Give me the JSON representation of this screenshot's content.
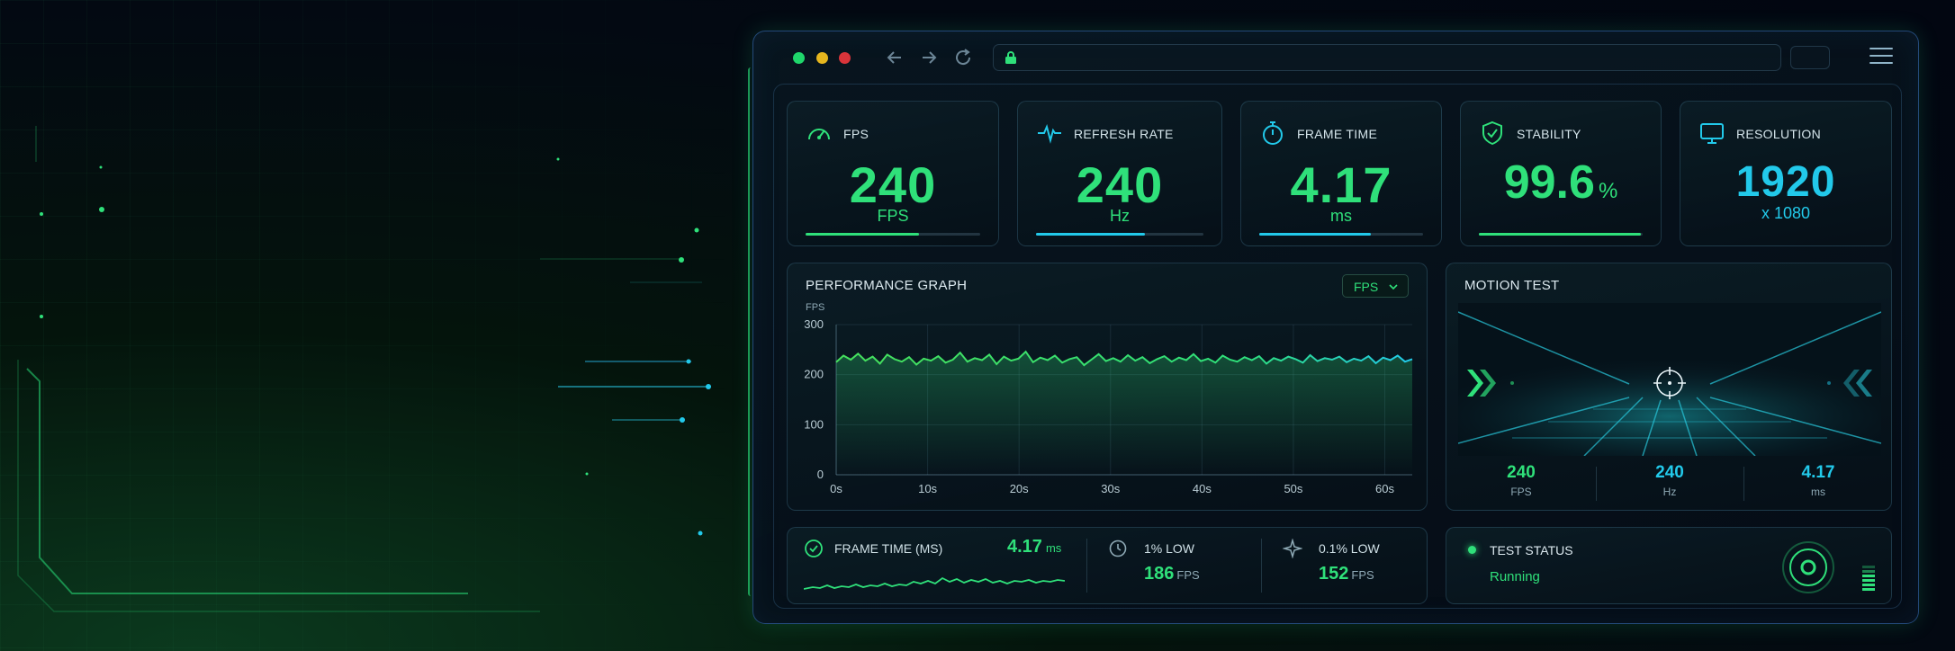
{
  "stats": [
    {
      "title": "FPS",
      "value": "240",
      "unit": "FPS",
      "color": "#2fe07a",
      "icon": "speedometer-icon",
      "fill": 0.65
    },
    {
      "title": "REFRESH RATE",
      "value": "240",
      "unit": "Hz",
      "color": "#2fe07a",
      "icon": "pulse-icon",
      "fill": 0.65
    },
    {
      "title": "FRAME TIME",
      "value": "4.17",
      "unit": "ms",
      "color": "#2fe07a",
      "icon": "stopwatch-icon",
      "fill": 0.68
    },
    {
      "title": "STABILITY",
      "value": "99.6",
      "unit": "%",
      "color": "#2fe07a",
      "icon": "shield-check-icon",
      "fill": 0.99
    },
    {
      "title": "RESOLUTION",
      "value": "1920",
      "unit": "x 1080",
      "color": "#22c9ea",
      "icon": "monitor-icon"
    }
  ],
  "performance": {
    "title": "PERFORMANCE GRAPH",
    "selector": "FPS"
  },
  "chart_data": {
    "type": "line",
    "ylabel": "FPS",
    "yticks": [
      "300",
      "200",
      "100",
      "0"
    ],
    "xticks": [
      "0s",
      "10s",
      "20s",
      "30s",
      "40s",
      "50s",
      "60s"
    ],
    "xlim": [
      0,
      63
    ],
    "ylim": [
      0,
      300
    ],
    "grid": true,
    "series": [
      {
        "values": [
          225,
          238,
          230,
          242,
          228,
          236,
          222,
          240,
          231,
          226,
          235,
          220,
          232,
          228,
          237,
          224,
          230,
          244,
          226,
          233,
          229,
          240,
          221,
          236,
          228,
          232,
          246,
          225,
          234,
          229,
          238,
          224,
          231,
          235,
          219,
          230,
          241,
          227,
          233,
          226,
          239,
          228,
          235,
          223,
          231,
          237,
          226,
          234,
          229,
          241,
          227,
          232,
          224,
          238,
          230,
          226,
          235,
          229,
          237,
          222,
          233,
          228,
          236,
          231,
          224,
          239,
          227,
          233,
          230,
          236,
          225,
          232,
          228,
          237,
          223,
          234,
          229,
          238,
          226,
          231
        ]
      }
    ]
  },
  "motion": {
    "title": "MOTION TEST",
    "metrics": [
      {
        "value": "240",
        "label": "FPS",
        "color": "#2fe07a"
      },
      {
        "value": "240",
        "label": "Hz",
        "color": "#22c9ea"
      },
      {
        "value": "4.17",
        "label": "ms",
        "color": "#22c9ea"
      }
    ]
  },
  "frame_time": {
    "title": "FRAME TIME (MS)",
    "value": "4.17",
    "unit": "ms"
  },
  "low1": {
    "title": "1% LOW",
    "value": "186",
    "unit": "FPS"
  },
  "low01": {
    "title": "0.1% LOW",
    "value": "152",
    "unit": "FPS"
  },
  "test_status": {
    "title": "TEST STATUS",
    "value": "Running"
  }
}
